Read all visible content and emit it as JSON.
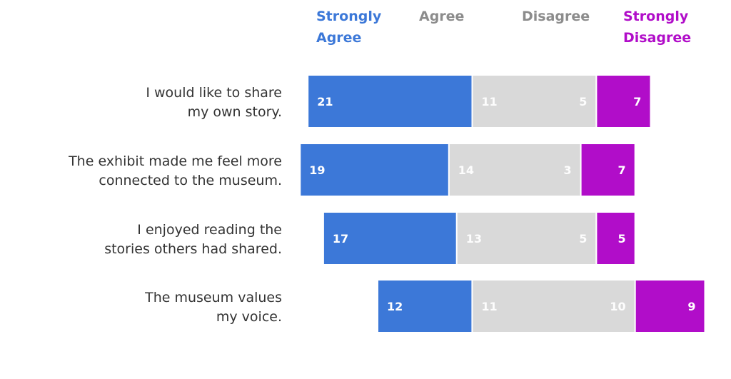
{
  "chart_data": {
    "type": "bar",
    "orientation": "horizontal",
    "stacked": "diverging",
    "grid": false,
    "legend_position": "top",
    "categories": [
      [
        "I would like to share",
        "my own story."
      ],
      [
        "The exhibit made me feel more",
        "connected to the museum."
      ],
      [
        "I enjoyed reading the",
        "stories others had shared."
      ],
      [
        "The museum values",
        "my voice."
      ]
    ],
    "series": [
      {
        "name": [
          "Strongly",
          "Agree"
        ],
        "color": "#3c78d8",
        "values": [
          21,
          19,
          17,
          12
        ]
      },
      {
        "name": [
          "Agree"
        ],
        "color": "#d9d9d9",
        "label_color": "#8c8c8c",
        "values": [
          11,
          14,
          13,
          11
        ]
      },
      {
        "name": [
          "Disagree"
        ],
        "color": "#d9d9d9",
        "label_color": "#8c8c8c",
        "values": [
          5,
          3,
          5,
          10
        ]
      },
      {
        "name": [
          "Strongly",
          "Disagree"
        ],
        "color": "#b10dc9",
        "values": [
          7,
          7,
          5,
          9
        ]
      }
    ]
  }
}
